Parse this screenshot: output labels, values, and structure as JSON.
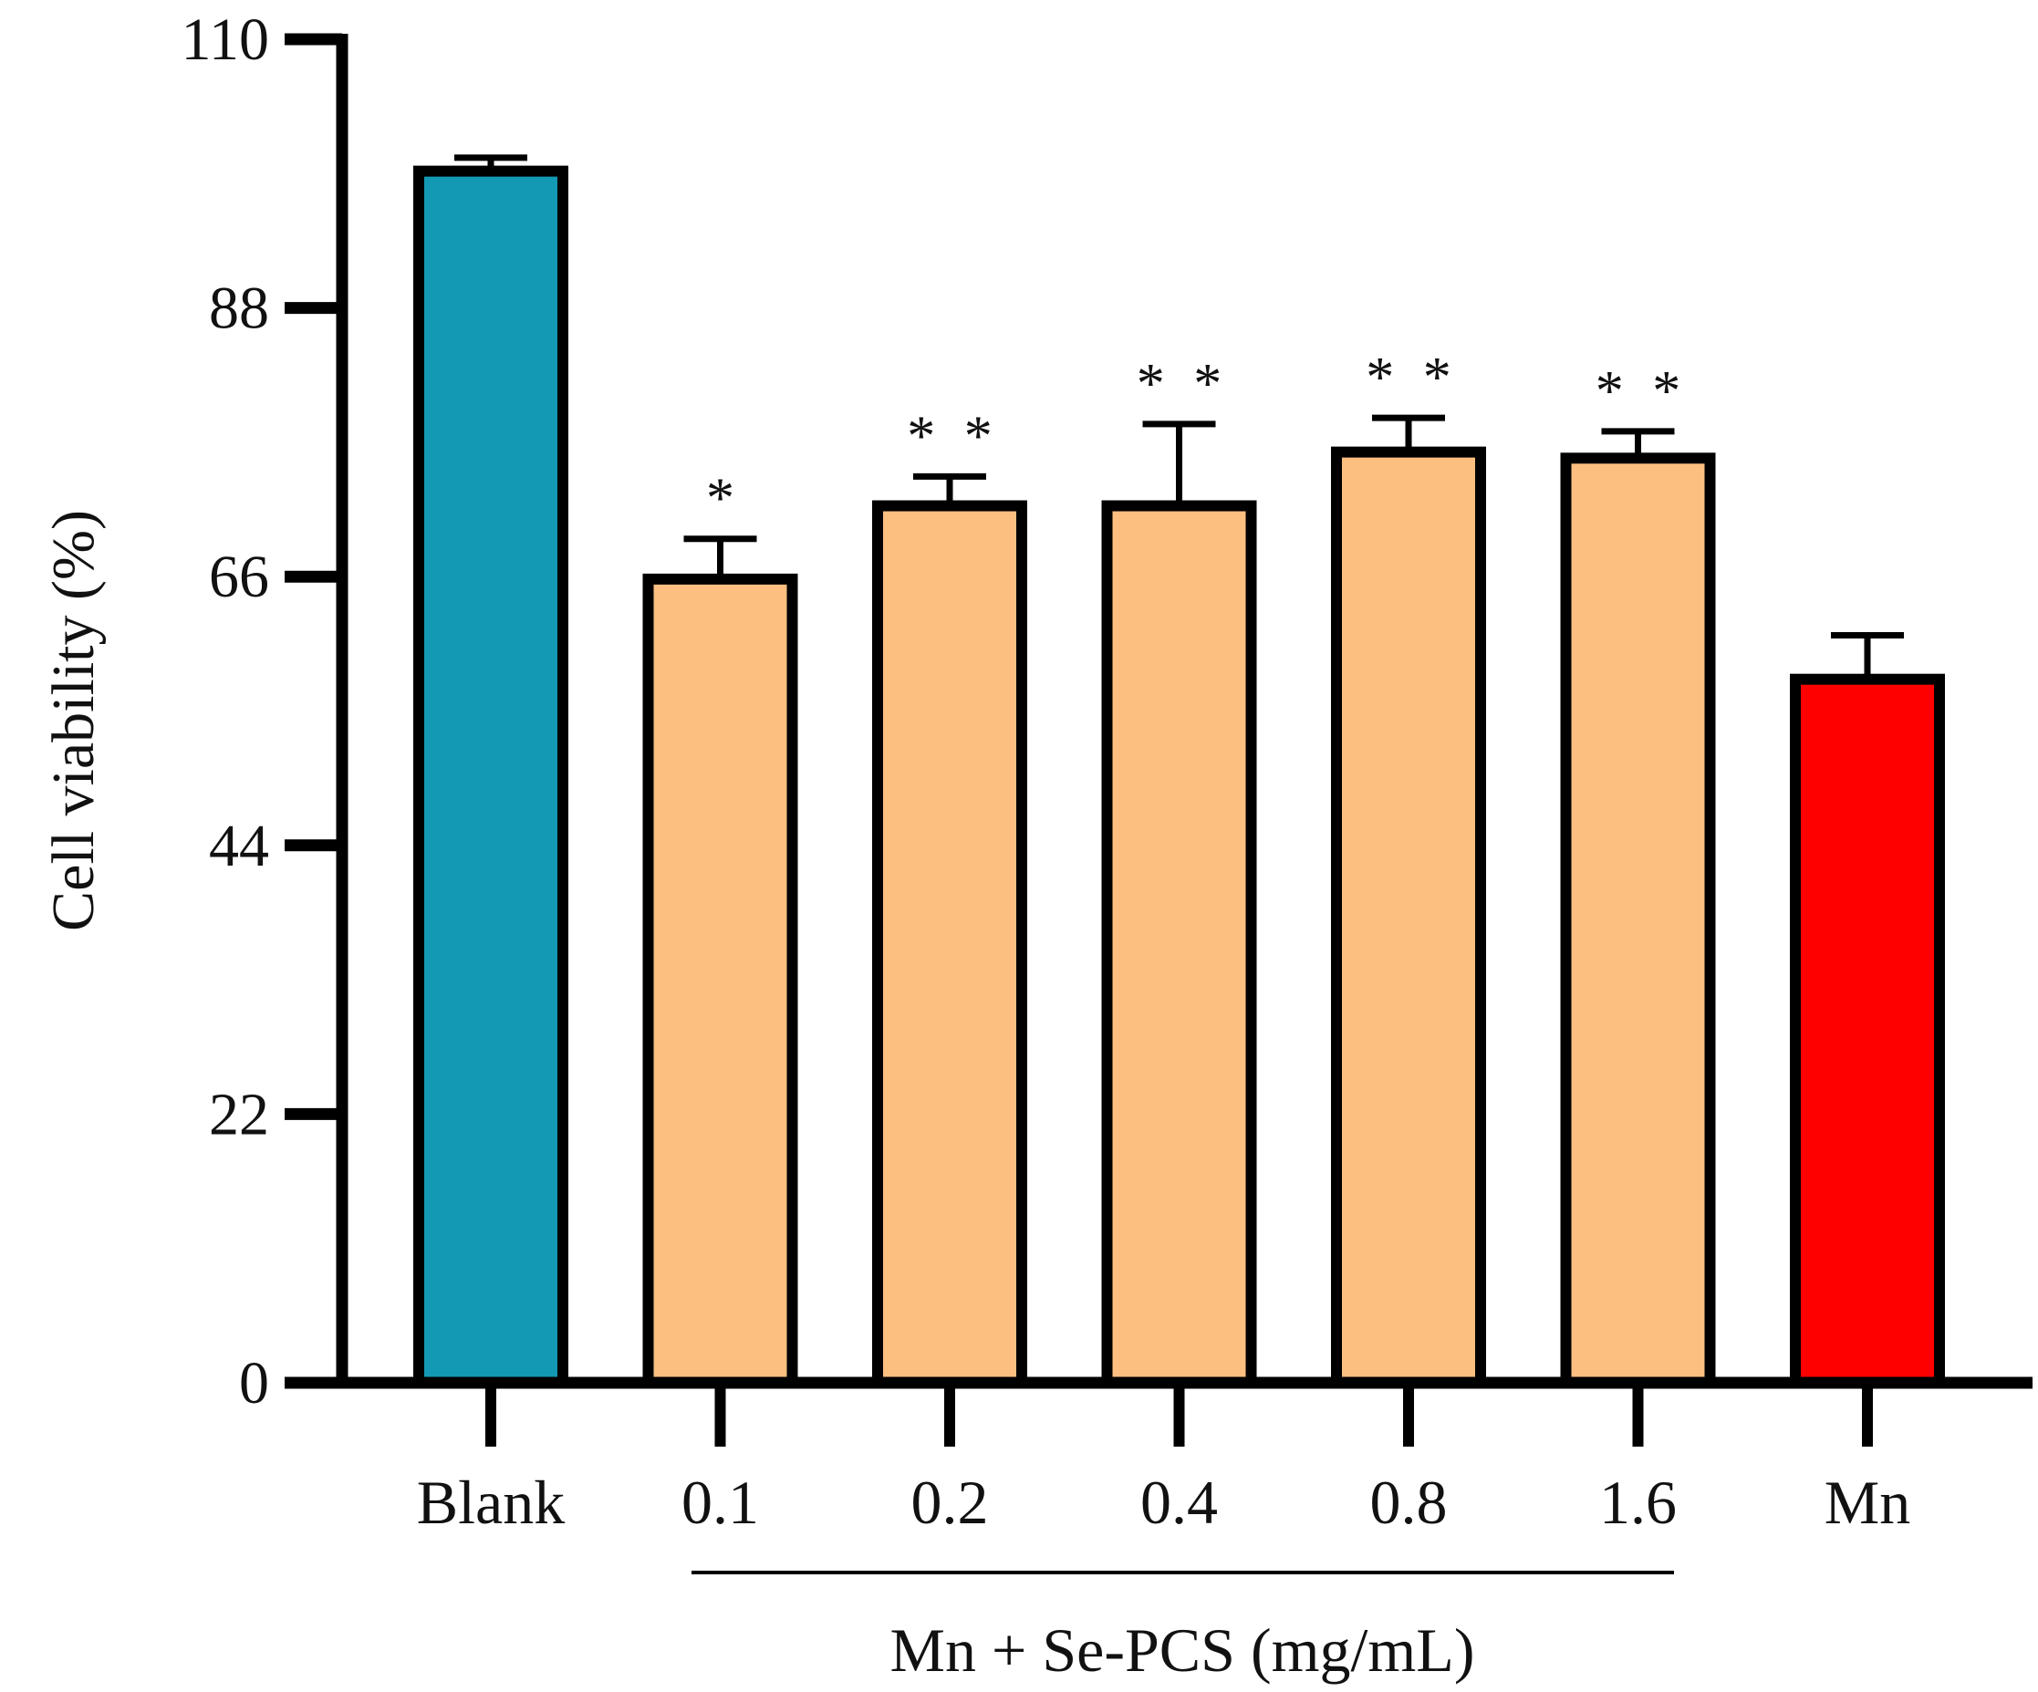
{
  "chart_data": {
    "type": "bar",
    "title": "",
    "xlabel": "",
    "ylabel": "Cell viability (%)",
    "ylim": [
      0,
      110
    ],
    "yticks": [
      0,
      22,
      44,
      66,
      88,
      110
    ],
    "grid": false,
    "categories": [
      "Blank",
      "0.1",
      "0.2",
      "0.4",
      "0.8",
      "1.6",
      "Mn"
    ],
    "values": [
      99.2,
      65.8,
      71.8,
      71.8,
      76.2,
      75.7,
      57.6
    ],
    "errors": [
      1.1,
      3.3,
      2.4,
      6.7,
      2.8,
      2.2,
      3.6
    ],
    "significance": [
      "",
      "*",
      "* *",
      "* *",
      "* *",
      "* *",
      ""
    ],
    "colors": [
      "#1499B5",
      "#FDBF80",
      "#FDBF80",
      "#FDBF80",
      "#FDBF80",
      "#FDBF80",
      "#FF0000"
    ],
    "group_label": "Mn + Se-PCS (mg/mL)"
  }
}
